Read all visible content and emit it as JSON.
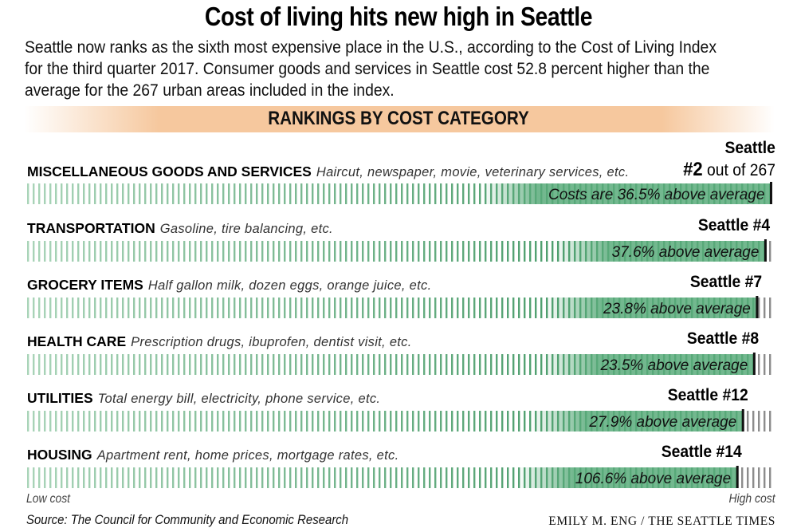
{
  "header": {
    "title": "Cost of living hits new high in Seattle",
    "intro": "Seattle now ranks as the sixth most expensive place in the U.S., according to the Cost of Living Index for the third quarter 2017. Consumer goods and services in Seattle cost 52.8 percent higher than the average for the 267 urban areas included in the index.",
    "band_title": "RANKINGS BY COST CATEGORY"
  },
  "colors": {
    "band": "#f6c89e",
    "tick_light": "#a9d4b8",
    "tick_dark": "#4d9e6d",
    "bar_fill": "#5aab7b",
    "tick_after": "#8c8c8c",
    "marker": "#111111"
  },
  "chart_data": {
    "type": "bar",
    "title": "RANKINGS BY COST CATEGORY",
    "xlabel_low": "Low cost",
    "xlabel_high": "High cost",
    "total_areas": 267,
    "xlim_rank": [
      267,
      1
    ],
    "categories": [
      "MISCELLANEOUS GOODS AND SERVICES",
      "TRANSPORTATION",
      "GROCERY ITEMS",
      "HEALTH CARE",
      "UTILITIES",
      "HOUSING"
    ],
    "descriptions": [
      "Haircut, newspaper, movie, veterinary services, etc.",
      "Gasoline, tire balancing, etc.",
      "Half gallon milk, dozen eggs, orange juice, etc.",
      "Prescription drugs, ibuprofen, dentist visit, etc.",
      "Total energy bill, electricity, phone service, etc.",
      "Apartment rent, home prices, mortgage rates, etc."
    ],
    "series": [
      {
        "name": "Seattle rank",
        "values": [
          2,
          4,
          7,
          8,
          12,
          14
        ]
      },
      {
        "name": "Percent above average",
        "values": [
          36.5,
          37.6,
          23.8,
          23.5,
          27.9,
          106.6
        ]
      }
    ],
    "rank_labels": [
      "#2",
      "Seattle #4",
      "Seattle #7",
      "Seattle #8",
      "Seattle #12",
      "Seattle #14"
    ],
    "first_rank_prefix": "Seattle",
    "first_rank_suffix": "out of 267",
    "pct_labels": [
      "Costs are 36.5% above average",
      "37.6% above average",
      "23.8% above average",
      "23.5% above average",
      "27.9% above average",
      "106.6% above average"
    ]
  },
  "footer": {
    "low_cost": "Low cost",
    "high_cost": "High cost",
    "source": "Source: The Council for Community and Economic Research",
    "byline": "EMILY M. ENG / THE SEATTLE TIMES"
  }
}
